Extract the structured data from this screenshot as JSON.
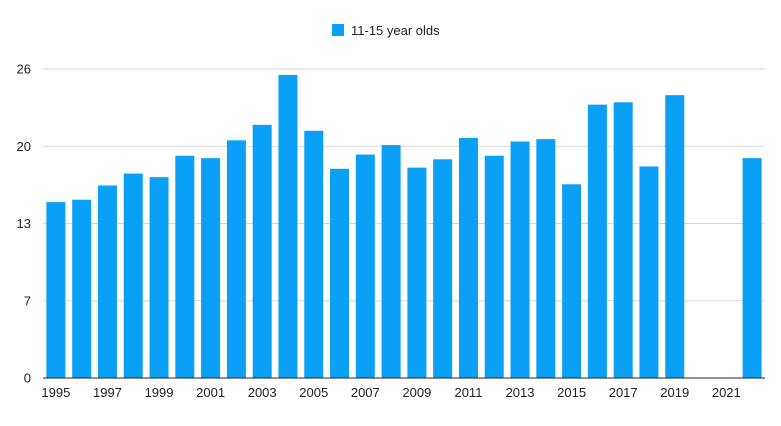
{
  "colors": {
    "bar": "#0aa0f5",
    "grid": "#d9d9d9",
    "axis": "#222222",
    "text": "#222222"
  },
  "chart_data": {
    "type": "bar",
    "title": "",
    "xlabel": "",
    "ylabel": "",
    "legend": {
      "position": "top-center"
    },
    "grid": true,
    "ylim": [
      0,
      26
    ],
    "y_ticks": [
      "0",
      "7",
      "13",
      "20",
      "26"
    ],
    "y_tick_values": [
      0,
      6.5,
      13,
      19.5,
      26
    ],
    "categories": [
      "1995",
      "1996",
      "1997",
      "1998",
      "1999",
      "2000",
      "2001",
      "2002",
      "2003",
      "2004",
      "2005",
      "2006",
      "2007",
      "2008",
      "2009",
      "2010",
      "2011",
      "2012",
      "2013",
      "2014",
      "2015",
      "2016",
      "2017",
      "2018",
      "2019",
      "2020",
      "2021",
      "2022"
    ],
    "x_tick_labels": [
      "1995",
      "",
      "1997",
      "",
      "1999",
      "",
      "2001",
      "",
      "2003",
      "",
      "2005",
      "",
      "2007",
      "",
      "2009",
      "",
      "2011",
      "",
      "2013",
      "",
      "2015",
      "",
      "2017",
      "",
      "2019",
      "",
      "2021",
      ""
    ],
    "series": [
      {
        "name": "11-15 year olds",
        "values": [
          14.8,
          15.0,
          16.2,
          17.2,
          16.9,
          18.7,
          18.5,
          20.0,
          21.3,
          25.5,
          20.8,
          17.6,
          18.8,
          19.6,
          17.7,
          18.4,
          20.2,
          18.7,
          19.9,
          20.1,
          16.3,
          23.0,
          23.2,
          17.8,
          23.8,
          null,
          null,
          18.5
        ]
      }
    ]
  }
}
